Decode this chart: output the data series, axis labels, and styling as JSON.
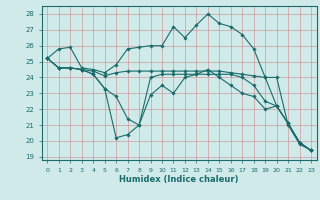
{
  "xlabel": "Humidex (Indice chaleur)",
  "xlim": [
    -0.5,
    23.5
  ],
  "ylim": [
    18.8,
    28.5
  ],
  "yticks": [
    19,
    20,
    21,
    22,
    23,
    24,
    25,
    26,
    27,
    28
  ],
  "xticks": [
    0,
    1,
    2,
    3,
    4,
    5,
    6,
    7,
    8,
    9,
    10,
    11,
    12,
    13,
    14,
    15,
    16,
    17,
    18,
    19,
    20,
    21,
    22,
    23
  ],
  "background_color": "#d0eaea",
  "grid_color": "#b0cccc",
  "line_color": "#1a6b6b",
  "lines": [
    [
      25.2,
      25.8,
      25.9,
      24.6,
      24.5,
      24.3,
      24.8,
      25.8,
      25.9,
      26.0,
      26.0,
      27.2,
      26.5,
      27.3,
      28.0,
      27.4,
      27.2,
      26.7,
      25.8,
      24.0,
      24.0,
      21.0,
      19.8,
      19.4
    ],
    [
      25.2,
      24.6,
      24.6,
      24.5,
      24.4,
      24.1,
      24.3,
      24.4,
      24.4,
      24.4,
      24.4,
      24.4,
      24.4,
      24.4,
      24.4,
      24.4,
      24.3,
      24.2,
      24.1,
      24.0,
      22.2,
      21.1,
      19.9,
      19.4
    ],
    [
      25.2,
      24.6,
      24.6,
      24.5,
      24.2,
      23.3,
      22.8,
      21.4,
      21.0,
      24.0,
      24.2,
      24.2,
      24.2,
      24.2,
      24.2,
      24.2,
      24.2,
      24.0,
      23.5,
      22.5,
      22.2,
      21.1,
      19.9,
      19.4
    ],
    [
      25.2,
      24.6,
      24.6,
      24.5,
      24.2,
      23.3,
      20.2,
      20.4,
      21.0,
      22.9,
      23.5,
      23.0,
      24.0,
      24.2,
      24.5,
      24.0,
      23.5,
      23.0,
      22.8,
      22.0,
      22.2,
      21.1,
      19.9,
      19.4
    ]
  ]
}
